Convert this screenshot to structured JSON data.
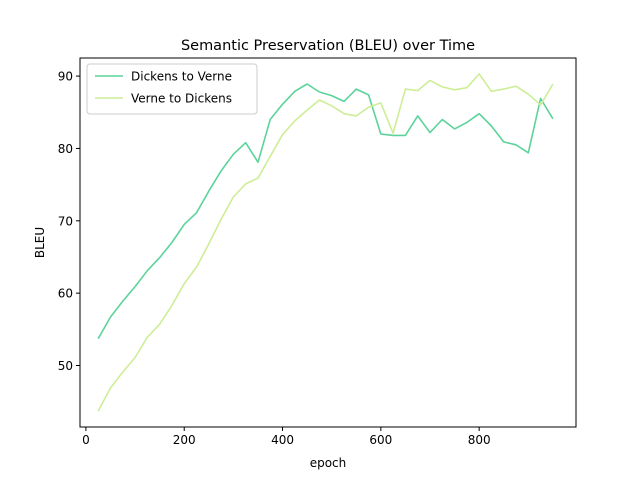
{
  "chart_data": {
    "type": "line",
    "title": "Semantic Preservation (BLEU) over Time",
    "xlabel": "epoch",
    "ylabel": "BLEU",
    "xlim": [
      -12,
      997
    ],
    "ylim": [
      41.5,
      92.5
    ],
    "xticks": [
      0,
      200,
      400,
      600,
      800
    ],
    "yticks": [
      50,
      60,
      70,
      80,
      90
    ],
    "grid": false,
    "legend_position": "top-left",
    "series": [
      {
        "name": "Dickens to Verne",
        "color": "#5cd39a",
        "points": [
          [
            25,
            53.7
          ],
          [
            50,
            56.7
          ],
          [
            75,
            58.9
          ],
          [
            100,
            60.9
          ],
          [
            125,
            63.1
          ],
          [
            150,
            64.9
          ],
          [
            175,
            67.0
          ],
          [
            200,
            69.5
          ],
          [
            225,
            71.1
          ],
          [
            250,
            74.1
          ],
          [
            275,
            76.9
          ],
          [
            300,
            79.2
          ],
          [
            325,
            80.8
          ],
          [
            350,
            78.1
          ],
          [
            375,
            84.0
          ],
          [
            400,
            86.1
          ],
          [
            425,
            87.9
          ],
          [
            450,
            88.9
          ],
          [
            475,
            87.8
          ],
          [
            500,
            87.3
          ],
          [
            525,
            86.5
          ],
          [
            550,
            88.2
          ],
          [
            575,
            87.4
          ],
          [
            600,
            82.0
          ],
          [
            625,
            81.8
          ],
          [
            650,
            81.8
          ],
          [
            675,
            84.5
          ],
          [
            700,
            82.2
          ],
          [
            725,
            84.0
          ],
          [
            750,
            82.7
          ],
          [
            775,
            83.6
          ],
          [
            800,
            84.8
          ],
          [
            825,
            83.1
          ],
          [
            850,
            80.9
          ],
          [
            875,
            80.5
          ],
          [
            900,
            79.4
          ],
          [
            925,
            86.9
          ],
          [
            950,
            84.1
          ]
        ]
      },
      {
        "name": "Verne to Dickens",
        "color": "#cdee96",
        "points": [
          [
            25,
            43.7
          ],
          [
            50,
            46.9
          ],
          [
            75,
            49.1
          ],
          [
            100,
            51.1
          ],
          [
            125,
            53.9
          ],
          [
            150,
            55.7
          ],
          [
            175,
            58.3
          ],
          [
            200,
            61.3
          ],
          [
            225,
            63.6
          ],
          [
            250,
            66.8
          ],
          [
            275,
            70.2
          ],
          [
            300,
            73.3
          ],
          [
            325,
            75.1
          ],
          [
            350,
            75.9
          ],
          [
            375,
            78.9
          ],
          [
            400,
            81.9
          ],
          [
            425,
            83.8
          ],
          [
            450,
            85.3
          ],
          [
            475,
            86.7
          ],
          [
            500,
            85.9
          ],
          [
            525,
            84.8
          ],
          [
            550,
            84.5
          ],
          [
            575,
            85.7
          ],
          [
            600,
            86.3
          ],
          [
            625,
            82.1
          ],
          [
            650,
            88.2
          ],
          [
            675,
            88.0
          ],
          [
            700,
            89.4
          ],
          [
            725,
            88.5
          ],
          [
            750,
            88.1
          ],
          [
            775,
            88.4
          ],
          [
            800,
            90.3
          ],
          [
            825,
            87.9
          ],
          [
            850,
            88.2
          ],
          [
            875,
            88.6
          ],
          [
            900,
            87.5
          ],
          [
            925,
            86.0
          ],
          [
            950,
            88.9
          ]
        ]
      }
    ]
  }
}
